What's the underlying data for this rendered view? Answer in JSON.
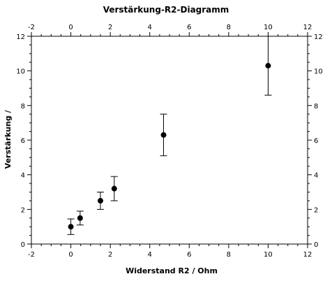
{
  "chart_data": {
    "type": "scatter",
    "title": "Verstärkung-R2-Diagramm",
    "xlabel": "Widerstand R2 / Ohm",
    "ylabel": "Verstärkung /",
    "xlim": [
      -2,
      12
    ],
    "ylim": [
      0,
      12
    ],
    "x_ticks": [
      "-2",
      "0",
      "2",
      "4",
      "6",
      "8",
      "10",
      "12"
    ],
    "y_ticks": [
      "0",
      "2",
      "4",
      "6",
      "8",
      "10",
      "12"
    ],
    "x_minor_step": 0.5,
    "y_minor_step": 0.5,
    "grid": false,
    "mirrored_axes": true,
    "points": [
      {
        "x": 0.0,
        "y": 1.0,
        "err_low": 0.55,
        "err_high": 1.45
      },
      {
        "x": 0.47,
        "y": 1.5,
        "err_low": 1.1,
        "err_high": 1.9
      },
      {
        "x": 1.5,
        "y": 2.5,
        "err_low": 2.0,
        "err_high": 3.0
      },
      {
        "x": 2.2,
        "y": 3.2,
        "err_low": 2.5,
        "err_high": 3.9
      },
      {
        "x": 4.7,
        "y": 6.3,
        "err_low": 5.1,
        "err_high": 7.5
      },
      {
        "x": 10.0,
        "y": 10.3,
        "err_low": 8.6,
        "err_high": 12.0
      }
    ],
    "marker_color": "#000000"
  }
}
